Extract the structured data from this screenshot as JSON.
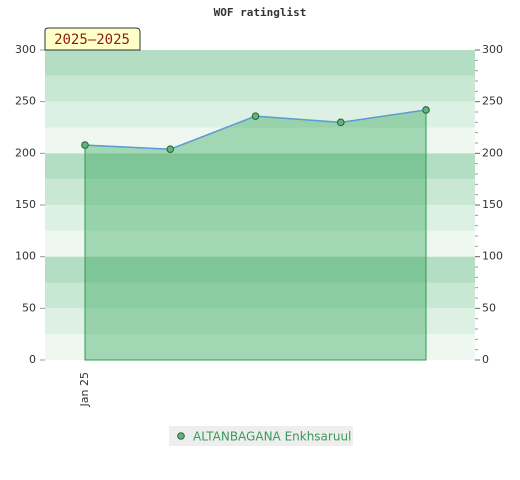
{
  "chart_data": {
    "type": "line",
    "title": "WOF ratinglist",
    "annotation": "2025–2025",
    "categories": [
      "Jan 25",
      null,
      null,
      null,
      null
    ],
    "series": [
      {
        "name": "ALTANBAGANA Enkhsaruul",
        "color": "#5b9bd5",
        "values": [
          208,
          204,
          236,
          230,
          242
        ]
      }
    ],
    "area": true,
    "ylim": [
      0,
      300
    ],
    "yticks": [
      0,
      50,
      100,
      150,
      200,
      250,
      300
    ],
    "y2lim": [
      0,
      300
    ],
    "y2ticks": [
      0,
      50,
      100,
      150,
      200,
      250,
      300
    ]
  }
}
